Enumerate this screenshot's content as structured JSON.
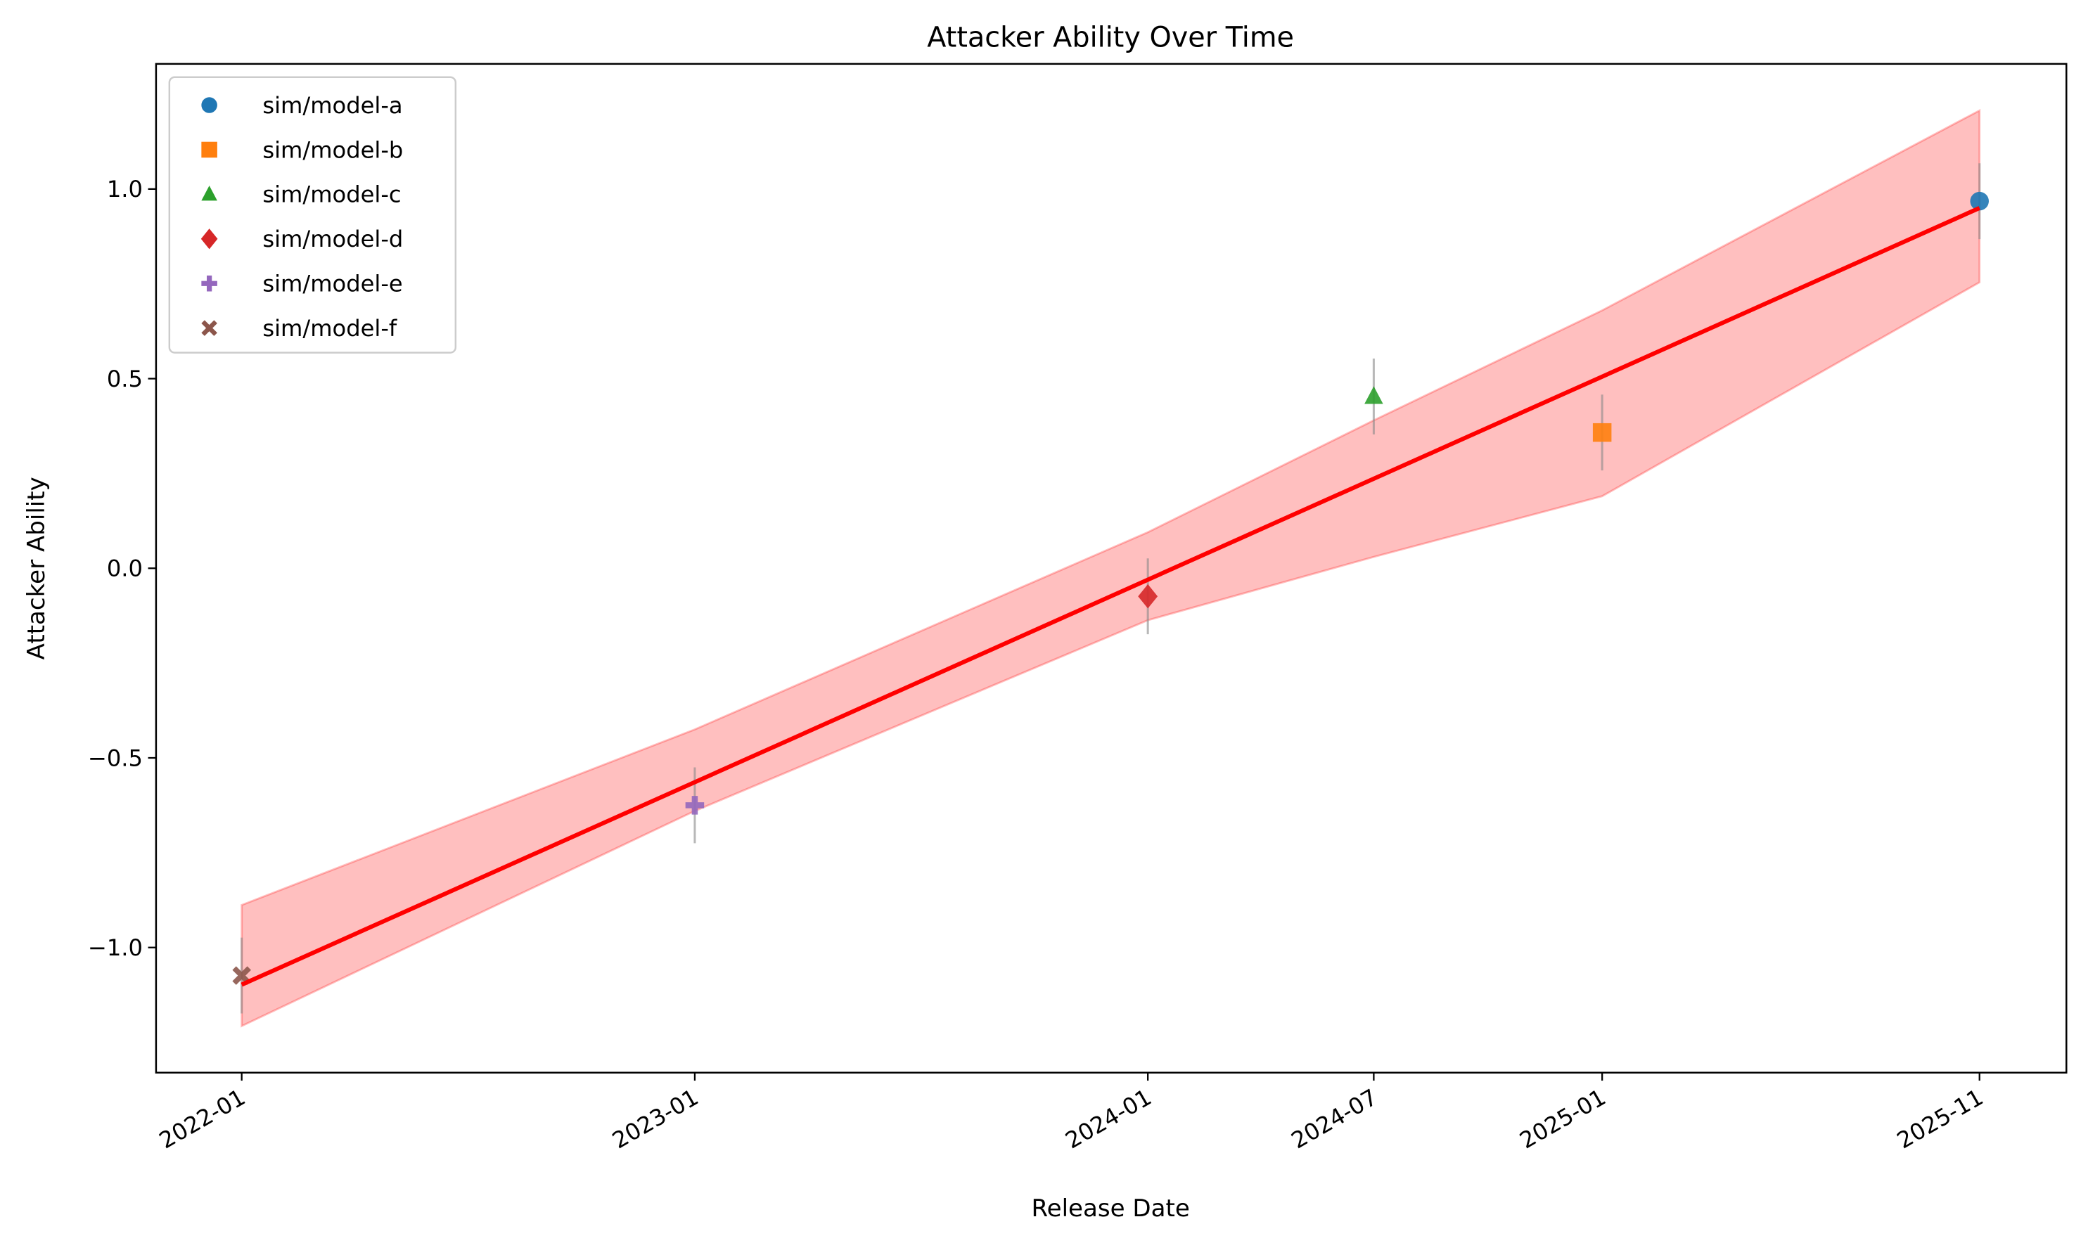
{
  "chart_data": {
    "type": "scatter",
    "title": "Attacker Ability Over Time",
    "xlabel": "Release Date",
    "ylabel": "Attacker Ability",
    "xlim": [
      "2021-10-24",
      "2026-01-10"
    ],
    "ylim": [
      -1.33,
      1.33
    ],
    "grid": false,
    "legend_position": "top-left",
    "x_ticks": [
      "2022-01",
      "2023-01",
      "2024-01",
      "2024-07",
      "2025-01",
      "2025-11"
    ],
    "y_ticks": [
      {
        "value": -1.0,
        "label": "−1.0"
      },
      {
        "value": -0.5,
        "label": "−0.5"
      },
      {
        "value": 0.0,
        "label": "0.0"
      },
      {
        "value": 0.5,
        "label": "0.5"
      },
      {
        "value": 1.0,
        "label": "1.0"
      }
    ],
    "series": [
      {
        "name": "sim/model-a",
        "x": "2025-11",
        "y": 0.968,
        "err": 0.1,
        "marker": "circle",
        "color": "#1f77b4"
      },
      {
        "name": "sim/model-b",
        "x": "2025-01",
        "y": 0.358,
        "err": 0.1,
        "marker": "square",
        "color": "#ff7f0e"
      },
      {
        "name": "sim/model-c",
        "x": "2024-07",
        "y": 0.453,
        "err": 0.1,
        "marker": "triangle",
        "color": "#2ca02c"
      },
      {
        "name": "sim/model-d",
        "x": "2024-01",
        "y": -0.074,
        "err": 0.1,
        "marker": "diamond",
        "color": "#d62728"
      },
      {
        "name": "sim/model-e",
        "x": "2023-01",
        "y": -0.625,
        "err": 0.1,
        "marker": "plus",
        "color": "#9467bd"
      },
      {
        "name": "sim/model-f",
        "x": "2022-01",
        "y": -1.074,
        "err": 0.1,
        "marker": "x",
        "color": "#8c564b"
      }
    ],
    "trend_line": {
      "x": [
        "2022-01",
        "2025-11"
      ],
      "y": [
        -1.098,
        0.95
      ],
      "color": "#ff0000"
    },
    "band": {
      "x": [
        "2022-01",
        "2023-01",
        "2024-01",
        "2024-07",
        "2025-01",
        "2025-11"
      ],
      "upper": [
        -0.888,
        -0.425,
        0.095,
        0.39,
        0.68,
        1.207
      ],
      "lower": [
        -1.207,
        -0.64,
        -0.137,
        0.03,
        0.19,
        0.754
      ],
      "color": "#ff0000"
    }
  }
}
